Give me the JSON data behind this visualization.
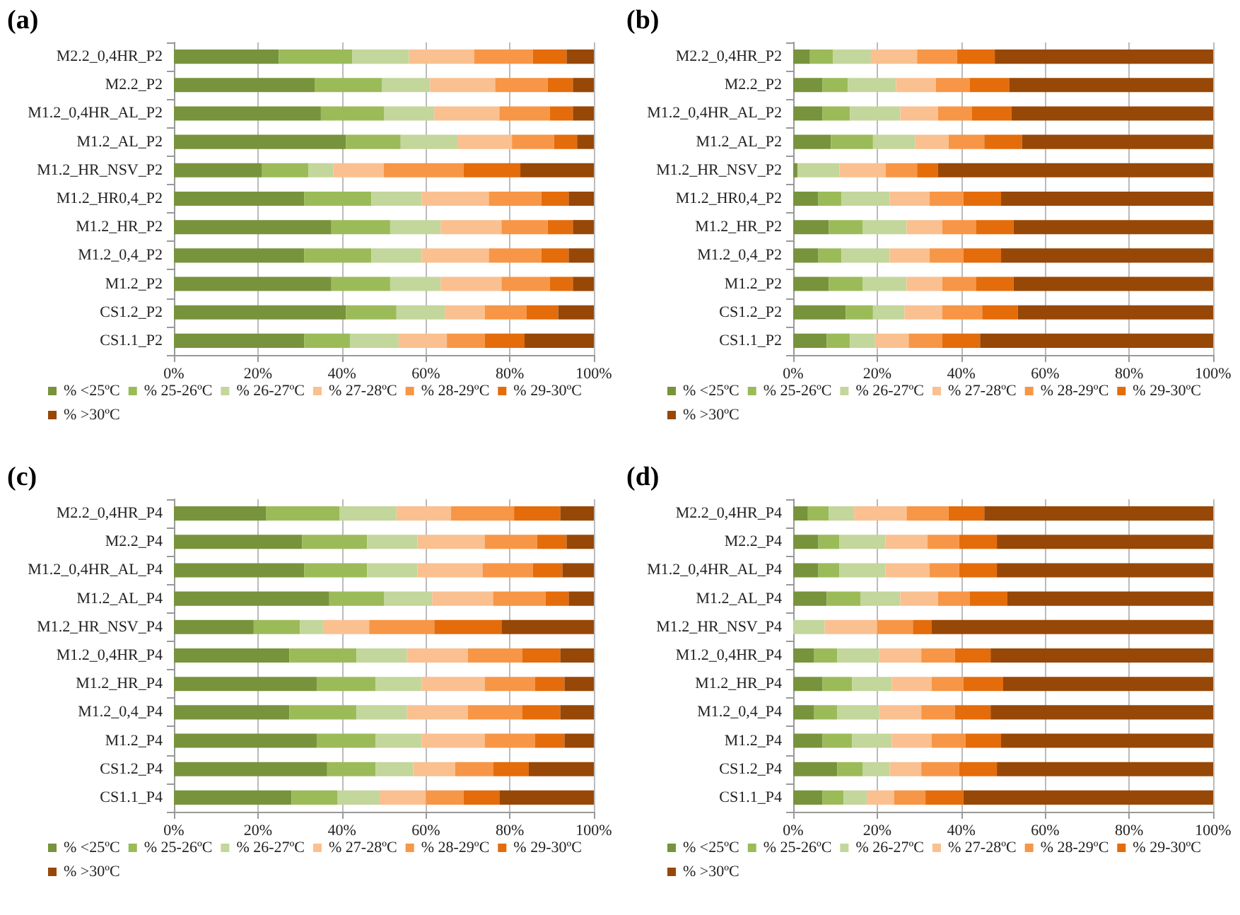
{
  "chart_data": [
    {
      "type": "bar",
      "title": "(a)",
      "orientation": "horizontal",
      "stacked": true,
      "grid": "x",
      "legend": "bottom",
      "xlim": [
        0,
        100
      ],
      "xticks": [
        {
          "value": 0,
          "label": "0%"
        },
        {
          "value": 20,
          "label": "20%"
        },
        {
          "value": 40,
          "label": "40%"
        },
        {
          "value": 60,
          "label": "60%"
        },
        {
          "value": 80,
          "label": "80%"
        },
        {
          "value": 100,
          "label": "100%"
        }
      ],
      "categories": [
        "M2.2_0,4HR_P2",
        "M2.2_P2",
        "M1.2_0,4HR_AL_P2",
        "M1.2_AL_P2",
        "M1.2_HR_NSV_P2",
        "M1.2_HR0,4_P2",
        "M1.2_HR_P2",
        "M1.2_0,4_P2",
        "M1.2_P2",
        "CS1.2_P2",
        "CS1.1_P2"
      ],
      "series": [
        {
          "name": "% <25ºC",
          "color": "#77933c",
          "values": [
            25,
            33.5,
            35,
            41,
            21,
            31,
            37.5,
            31,
            37.5,
            41,
            31
          ]
        },
        {
          "name": "% 25-26ºC",
          "color": "#9bbb59",
          "values": [
            17.5,
            16,
            15,
            13,
            11,
            16,
            14,
            16,
            14,
            12,
            11
          ]
        },
        {
          "name": "% 26-27ºC",
          "color": "#c3d69b",
          "values": [
            13.5,
            11.5,
            12,
            13.5,
            6,
            12,
            12,
            12,
            12,
            11.5,
            11.5
          ]
        },
        {
          "name": "% 27-28ºC",
          "color": "#fac090",
          "values": [
            15.5,
            15.5,
            15.5,
            13,
            12,
            16,
            14.5,
            16,
            14.5,
            9.5,
            11.5
          ]
        },
        {
          "name": "% 28-29ºC",
          "color": "#f79646",
          "values": [
            14,
            12.5,
            12,
            10,
            19,
            12.5,
            11,
            12.5,
            11.5,
            10,
            9
          ]
        },
        {
          "name": "% 29-30ºC",
          "color": "#e46c0a",
          "values": [
            8,
            6,
            5.5,
            5.5,
            13.5,
            6.5,
            6,
            6.5,
            5.5,
            7.5,
            9.5
          ]
        },
        {
          "name": "% >30ºC",
          "color": "#974706",
          "values": [
            6.5,
            5,
            5,
            4,
            17.5,
            6,
            5,
            6,
            5,
            8.5,
            16.5
          ]
        }
      ]
    },
    {
      "type": "bar",
      "title": "(b)",
      "orientation": "horizontal",
      "stacked": true,
      "grid": "x",
      "legend": "bottom",
      "xlim": [
        0,
        100
      ],
      "xticks": [
        {
          "value": 0,
          "label": "0%"
        },
        {
          "value": 20,
          "label": "20%"
        },
        {
          "value": 40,
          "label": "40%"
        },
        {
          "value": 60,
          "label": "60%"
        },
        {
          "value": 80,
          "label": "80%"
        },
        {
          "value": 100,
          "label": "100%"
        }
      ],
      "categories": [
        "M2.2_0,4HR_P2",
        "M2.2_P2",
        "M1.2_0,4HR_AL_P2",
        "M1.2_AL_P2",
        "M1.2_HR_NSV_P2",
        "M1.2_HR0,4_P2",
        "M1.2_HR_P2",
        "M1.2_0,4_P2",
        "M1.2_P2",
        "CS1.2_P2",
        "CS1.1_P2"
      ],
      "series": [
        {
          "name": "% <25ºC",
          "color": "#77933c",
          "values": [
            4,
            7,
            7,
            9,
            1,
            6,
            8.5,
            6,
            8.5,
            12.5,
            8
          ]
        },
        {
          "name": "% 25-26ºC",
          "color": "#9bbb59",
          "values": [
            5.5,
            6,
            6.5,
            10,
            0,
            5.5,
            8,
            5.5,
            8,
            6.5,
            5.5
          ]
        },
        {
          "name": "% 26-27ºC",
          "color": "#c3d69b",
          "values": [
            9,
            11.5,
            12,
            10,
            10,
            11.5,
            10.5,
            11.5,
            10.5,
            7.5,
            6
          ]
        },
        {
          "name": "% 27-28ºC",
          "color": "#fac090",
          "values": [
            11,
            9.5,
            9,
            8,
            11,
            9.5,
            8.5,
            9.5,
            8.5,
            9,
            8
          ]
        },
        {
          "name": "% 28-29ºC",
          "color": "#f79646",
          "values": [
            9.5,
            8,
            8,
            8.5,
            7.5,
            8,
            8,
            8,
            8,
            9.5,
            8
          ]
        },
        {
          "name": "% 29-30ºC",
          "color": "#e46c0a",
          "values": [
            9,
            9.5,
            9.5,
            9,
            5,
            9,
            9,
            9,
            9,
            8.5,
            9
          ]
        },
        {
          "name": "% >30ºC",
          "color": "#974706",
          "values": [
            52,
            48.5,
            48,
            45.5,
            65.5,
            50.5,
            47.5,
            50.5,
            47.5,
            46.5,
            55.5
          ]
        }
      ]
    },
    {
      "type": "bar",
      "title": "(c)",
      "orientation": "horizontal",
      "stacked": true,
      "grid": "x",
      "legend": "bottom",
      "xlim": [
        0,
        100
      ],
      "xticks": [
        {
          "value": 0,
          "label": "0%"
        },
        {
          "value": 20,
          "label": "20%"
        },
        {
          "value": 40,
          "label": "40%"
        },
        {
          "value": 60,
          "label": "60%"
        },
        {
          "value": 80,
          "label": "80%"
        },
        {
          "value": 100,
          "label": "100%"
        }
      ],
      "categories": [
        "M2.2_0,4HR_P4",
        "M2.2_P4",
        "M1.2_0,4HR_AL_P4",
        "M1.2_AL_P4",
        "M1.2_HR_NSV_P4",
        "M1.2_0,4HR_P4",
        "M1.2_HR_P4",
        "M1.2_0,4_P4",
        "M1.2_P4",
        "CS1.2_P4",
        "CS1.1_P4"
      ],
      "series": [
        {
          "name": "% <25ºC",
          "color": "#77933c",
          "values": [
            22,
            30.5,
            31,
            37,
            19,
            27.5,
            34,
            27.5,
            34,
            36.5,
            28
          ]
        },
        {
          "name": "% 25-26ºC",
          "color": "#9bbb59",
          "values": [
            17.5,
            15.5,
            15,
            13,
            11,
            16,
            14,
            16,
            14,
            11.5,
            11
          ]
        },
        {
          "name": "% 26-27ºC",
          "color": "#c3d69b",
          "values": [
            13.5,
            12,
            12,
            11.5,
            5.5,
            12,
            11,
            12,
            11,
            9,
            10
          ]
        },
        {
          "name": "% 27-28ºC",
          "color": "#fac090",
          "values": [
            13,
            16,
            15.5,
            14.5,
            11,
            14.5,
            15,
            14.5,
            15,
            10,
            11
          ]
        },
        {
          "name": "% 28-29ºC",
          "color": "#f79646",
          "values": [
            15,
            12.5,
            12,
            12.5,
            15.5,
            13,
            12,
            13,
            12,
            9,
            9
          ]
        },
        {
          "name": "% 29-30ºC",
          "color": "#e46c0a",
          "values": [
            11,
            7,
            7,
            5.5,
            16,
            9,
            7,
            9,
            7,
            8.5,
            8.5
          ]
        },
        {
          "name": "% >30ºC",
          "color": "#974706",
          "values": [
            8,
            6.5,
            7.5,
            6,
            22,
            8,
            7,
            8,
            7,
            15.5,
            22.5
          ]
        }
      ]
    },
    {
      "type": "bar",
      "title": "(d)",
      "orientation": "horizontal",
      "stacked": true,
      "grid": "x",
      "legend": "bottom",
      "xlim": [
        0,
        100
      ],
      "xticks": [
        {
          "value": 0,
          "label": "0%"
        },
        {
          "value": 20,
          "label": "20%"
        },
        {
          "value": 40,
          "label": "40%"
        },
        {
          "value": 60,
          "label": "60%"
        },
        {
          "value": 80,
          "label": "80%"
        },
        {
          "value": 100,
          "label": "100%"
        }
      ],
      "categories": [
        "M2.2_0,4HR_P4",
        "M2.2_P4",
        "M1.2_0,4HR_AL_P4",
        "M1.2_AL_P4",
        "M1.2_HR_NSV_P4",
        "M1.2_0,4HR_P4",
        "M1.2_HR_P4",
        "M1.2_0,4_P4",
        "M1.2_P4",
        "CS1.2_P4",
        "CS1.1_P4"
      ],
      "series": [
        {
          "name": "% <25ºC",
          "color": "#77933c",
          "values": [
            3.5,
            6,
            6,
            8,
            0,
            5,
            7,
            5,
            7,
            10.5,
            7
          ]
        },
        {
          "name": "% 25-26ºC",
          "color": "#9bbb59",
          "values": [
            5,
            5,
            5,
            8,
            0,
            5.5,
            7,
            5.5,
            7,
            6,
            5
          ]
        },
        {
          "name": "% 26-27ºC",
          "color": "#c3d69b",
          "values": [
            6,
            11,
            11,
            9.5,
            7.5,
            10,
            9.5,
            10,
            9.5,
            6.5,
            5.5
          ]
        },
        {
          "name": "% 27-28ºC",
          "color": "#fac090",
          "values": [
            12.5,
            10,
            10.5,
            9,
            12.5,
            10,
            9.5,
            10,
            9.5,
            7.5,
            6.5
          ]
        },
        {
          "name": "% 28-29ºC",
          "color": "#f79646",
          "values": [
            10,
            7.5,
            7,
            7.5,
            8.5,
            8,
            7.5,
            8,
            8,
            9,
            7.5
          ]
        },
        {
          "name": "% 29-30ºC",
          "color": "#e46c0a",
          "values": [
            8.5,
            9,
            9,
            9,
            4.5,
            8.5,
            9.5,
            8.5,
            8.5,
            9,
            9
          ]
        },
        {
          "name": "% >30ºC",
          "color": "#974706",
          "values": [
            54.5,
            51.5,
            51.5,
            49,
            67,
            53,
            50,
            53,
            50.5,
            51.5,
            59.5
          ]
        }
      ]
    }
  ]
}
